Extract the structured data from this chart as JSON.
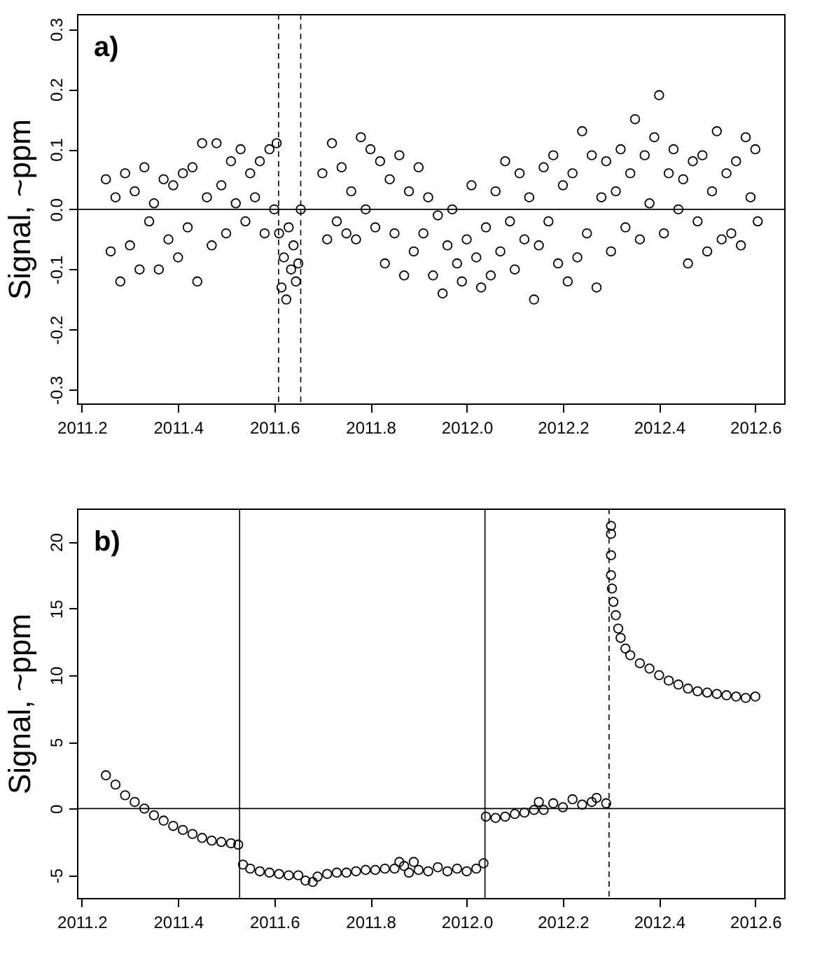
{
  "chart_data": [
    {
      "type": "scatter",
      "ylabel": "Signal,  ~ppm",
      "annotations": [
        "a)"
      ],
      "marker": "circle",
      "grid": false,
      "xlim": [
        2011.19,
        2012.66
      ],
      "ylim": [
        -0.323,
        0.325
      ],
      "xticks": [
        2011.2,
        2011.4,
        2011.6,
        2011.8,
        {
          "value": 2012,
          "label": "2012.0"
        },
        2012.2,
        2012.4,
        2012.6
      ],
      "yticks": [
        -0.3,
        -0.2,
        -0.1,
        {
          "value": 0,
          "label": "0.0"
        },
        0.1,
        0.2,
        0.3
      ],
      "ref_lines": [
        {
          "axis": "y",
          "value": 0,
          "line_style": "solid"
        },
        {
          "axis": "x",
          "value": 2011.609,
          "line_style": "dashed"
        },
        {
          "axis": "x",
          "value": 2011.655,
          "line_style": "dashed"
        }
      ],
      "series": [
        {
          "color": "#000000",
          "x": [
            2011.25,
            2011.26,
            2011.27,
            2011.28,
            2011.29,
            2011.3,
            2011.31,
            2011.32,
            2011.33,
            2011.34,
            2011.35,
            2011.36,
            2011.37,
            2011.38,
            2011.39,
            2011.4,
            2011.41,
            2011.42,
            2011.43,
            2011.44,
            2011.45,
            2011.46,
            2011.47,
            2011.48,
            2011.49,
            2011.5,
            2011.51,
            2011.52,
            2011.53,
            2011.54,
            2011.55,
            2011.56,
            2011.57,
            2011.58,
            2011.59,
            2011.6,
            2011.605,
            2011.61,
            2011.615,
            2011.62,
            2011.625,
            2011.63,
            2011.635,
            2011.64,
            2011.645,
            2011.65,
            2011.655,
            2011.7,
            2011.71,
            2011.72,
            2011.73,
            2011.74,
            2011.75,
            2011.76,
            2011.77,
            2011.78,
            2011.79,
            2011.8,
            2011.81,
            2011.82,
            2011.83,
            2011.84,
            2011.85,
            2011.86,
            2011.87,
            2011.88,
            2011.89,
            2011.9,
            2011.91,
            2011.92,
            2011.93,
            2011.94,
            2011.95,
            2011.96,
            2011.97,
            2011.98,
            2011.99,
            2012.0,
            2012.01,
            2012.02,
            2012.03,
            2012.04,
            2012.05,
            2012.06,
            2012.07,
            2012.08,
            2012.09,
            2012.1,
            2012.11,
            2012.12,
            2012.13,
            2012.14,
            2012.15,
            2012.16,
            2012.17,
            2012.18,
            2012.19,
            2012.2,
            2012.21,
            2012.22,
            2012.23,
            2012.24,
            2012.25,
            2012.26,
            2012.27,
            2012.28,
            2012.29,
            2012.3,
            2012.31,
            2012.32,
            2012.33,
            2012.34,
            2012.35,
            2012.36,
            2012.37,
            2012.38,
            2012.39,
            2012.4,
            2012.41,
            2012.42,
            2012.43,
            2012.44,
            2012.45,
            2012.46,
            2012.47,
            2012.48,
            2012.49,
            2012.5,
            2012.51,
            2012.52,
            2012.53,
            2012.54,
            2012.55,
            2012.56,
            2012.57,
            2012.58,
            2012.59,
            2012.6,
            2012.605
          ],
          "values": [
            0.05,
            -0.07,
            0.02,
            -0.12,
            0.06,
            -0.06,
            0.03,
            -0.1,
            0.07,
            -0.02,
            0.01,
            -0.1,
            0.05,
            -0.05,
            0.04,
            -0.08,
            0.06,
            -0.03,
            0.07,
            -0.12,
            0.11,
            0.02,
            -0.06,
            0.11,
            0.04,
            -0.04,
            0.08,
            0.01,
            0.1,
            -0.02,
            0.06,
            0.02,
            0.08,
            -0.04,
            0.1,
            0.0,
            0.11,
            -0.04,
            -0.13,
            -0.08,
            -0.15,
            -0.03,
            -0.1,
            -0.06,
            -0.12,
            -0.09,
            0.0,
            0.06,
            -0.05,
            0.11,
            -0.02,
            0.07,
            -0.04,
            0.03,
            -0.05,
            0.12,
            0.0,
            0.1,
            -0.03,
            0.08,
            -0.09,
            0.05,
            -0.04,
            0.09,
            -0.11,
            0.03,
            -0.07,
            0.07,
            -0.04,
            0.02,
            -0.11,
            -0.01,
            -0.14,
            -0.06,
            0.0,
            -0.09,
            -0.12,
            -0.05,
            0.04,
            -0.08,
            -0.13,
            -0.03,
            -0.11,
            0.03,
            -0.07,
            0.08,
            -0.02,
            -0.1,
            0.06,
            -0.05,
            0.02,
            -0.15,
            -0.06,
            0.07,
            -0.02,
            0.09,
            -0.09,
            0.04,
            -0.12,
            0.06,
            -0.08,
            0.13,
            -0.04,
            0.09,
            -0.13,
            0.02,
            0.08,
            -0.07,
            0.03,
            0.1,
            -0.03,
            0.06,
            0.15,
            -0.05,
            0.09,
            0.01,
            0.12,
            0.19,
            -0.04,
            0.06,
            0.1,
            0.0,
            0.05,
            -0.09,
            0.08,
            -0.02,
            0.09,
            -0.07,
            0.03,
            0.13,
            -0.05,
            0.06,
            -0.04,
            0.08,
            -0.06,
            0.12,
            0.02,
            0.1,
            -0.02
          ]
        }
      ]
    },
    {
      "type": "scatter",
      "ylabel": "Signal,  ~ppm",
      "annotations": [
        "b)"
      ],
      "marker": "circle",
      "grid": false,
      "xlim": [
        2011.19,
        2012.66
      ],
      "ylim": [
        -6.7,
        22.5
      ],
      "xticks": [
        2011.2,
        2011.4,
        2011.6,
        2011.8,
        {
          "value": 2012,
          "label": "2012.0"
        },
        2012.2,
        2012.4,
        2012.6
      ],
      "yticks": [
        -5,
        0,
        5,
        10,
        15,
        20
      ],
      "ref_lines": [
        {
          "axis": "y",
          "value": 0,
          "line_style": "solid"
        },
        {
          "axis": "x",
          "value": 2011.528,
          "line_style": "solid"
        },
        {
          "axis": "x",
          "value": 2012.038,
          "line_style": "solid"
        },
        {
          "axis": "x",
          "value": 2012.296,
          "line_style": "dashed"
        }
      ],
      "series": [
        {
          "color": "#000000",
          "x": [
            2011.25,
            2011.27,
            2011.29,
            2011.31,
            2011.33,
            2011.35,
            2011.37,
            2011.39,
            2011.41,
            2011.43,
            2011.45,
            2011.47,
            2011.49,
            2011.51,
            2011.525,
            2011.535,
            2011.55,
            2011.57,
            2011.59,
            2011.61,
            2011.63,
            2011.65,
            2011.665,
            2011.68,
            2011.69,
            2011.71,
            2011.73,
            2011.75,
            2011.77,
            2011.79,
            2011.81,
            2011.83,
            2011.85,
            2011.86,
            2011.87,
            2011.88,
            2011.89,
            2011.9,
            2011.92,
            2011.94,
            2011.96,
            2011.98,
            2012.0,
            2012.02,
            2012.035,
            2012.04,
            2012.06,
            2012.08,
            2012.1,
            2012.12,
            2012.14,
            2012.15,
            2012.16,
            2012.18,
            2012.2,
            2012.22,
            2012.24,
            2012.26,
            2012.27,
            2012.29,
            2012.3,
            2012.3,
            2012.3,
            2012.3,
            2012.302,
            2012.305,
            2012.31,
            2012.315,
            2012.32,
            2012.33,
            2012.34,
            2012.36,
            2012.38,
            2012.4,
            2012.42,
            2012.44,
            2012.46,
            2012.48,
            2012.5,
            2012.52,
            2012.54,
            2012.56,
            2012.58,
            2012.6
          ],
          "values": [
            2.5,
            1.8,
            1.0,
            0.5,
            0.0,
            -0.5,
            -0.9,
            -1.3,
            -1.6,
            -1.9,
            -2.2,
            -2.4,
            -2.5,
            -2.6,
            -2.7,
            -4.2,
            -4.5,
            -4.7,
            -4.8,
            -4.9,
            -5.0,
            -5.0,
            -5.4,
            -5.5,
            -5.1,
            -4.9,
            -4.8,
            -4.8,
            -4.7,
            -4.6,
            -4.6,
            -4.5,
            -4.5,
            -4.0,
            -4.3,
            -4.8,
            -4.0,
            -4.6,
            -4.7,
            -4.4,
            -4.7,
            -4.5,
            -4.7,
            -4.5,
            -4.1,
            -0.6,
            -0.7,
            -0.6,
            -0.4,
            -0.3,
            -0.1,
            0.5,
            -0.1,
            0.4,
            0.1,
            0.7,
            0.3,
            0.5,
            0.8,
            0.4,
            21.2,
            20.6,
            19.0,
            17.5,
            16.5,
            15.5,
            14.5,
            13.5,
            12.8,
            12.0,
            11.5,
            10.9,
            10.5,
            10.0,
            9.6,
            9.3,
            9.0,
            8.8,
            8.7,
            8.6,
            8.5,
            8.4,
            8.3,
            8.4
          ]
        }
      ]
    }
  ]
}
